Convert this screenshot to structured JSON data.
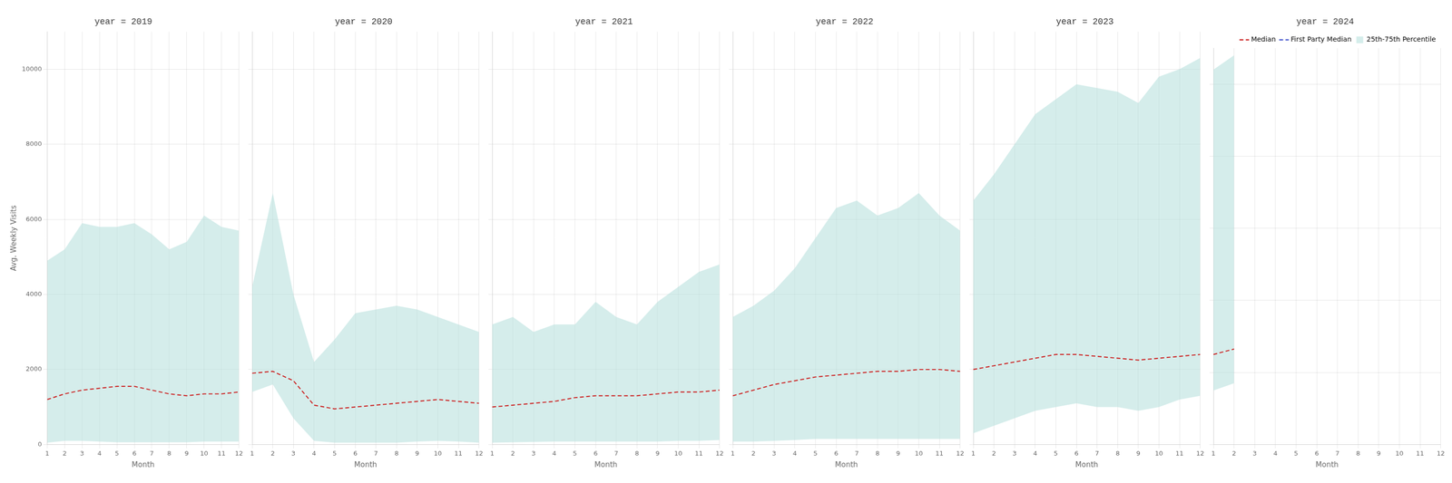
{
  "chart_data": [
    {
      "type": "line",
      "title": "year = 2019",
      "xlabel": "Month",
      "ylabel": "Avg. Weekly Visits",
      "x": [
        1,
        2,
        3,
        4,
        5,
        6,
        7,
        8,
        9,
        10,
        11,
        12
      ],
      "series": [
        {
          "name": "25th-75th Percentile",
          "type": "band",
          "color": "#b2dfdb",
          "lower": [
            50,
            100,
            100,
            80,
            60,
            60,
            60,
            60,
            60,
            80,
            80,
            80
          ],
          "upper": [
            4900,
            5200,
            5900,
            5800,
            5800,
            5900,
            5600,
            5200,
            5400,
            6100,
            5800,
            5700
          ]
        },
        {
          "name": "Median",
          "color": "#cc2222",
          "line_style": "dashed",
          "values": [
            1200,
            1350,
            1450,
            1500,
            1550,
            1550,
            1450,
            1350,
            1300,
            1350,
            1350,
            1400
          ]
        }
      ],
      "xlim": [
        1,
        12
      ],
      "xticks": [
        1,
        2,
        3,
        4,
        5,
        6,
        7,
        8,
        9,
        10,
        11,
        12
      ],
      "ylim": [
        0,
        11000
      ],
      "yticks": [
        0,
        2000,
        4000,
        6000,
        8000,
        10000
      ],
      "grid": true
    },
    {
      "type": "line",
      "title": "year = 2020",
      "xlabel": "Month",
      "x": [
        1,
        2,
        3,
        4,
        5,
        6,
        7,
        8,
        9,
        10,
        11,
        12
      ],
      "series": [
        {
          "name": "25th-75th Percentile",
          "type": "band",
          "color": "#b2dfdb",
          "lower": [
            1400,
            1600,
            700,
            100,
            50,
            50,
            50,
            50,
            80,
            100,
            80,
            50
          ],
          "upper": [
            4200,
            6700,
            4000,
            2200,
            2800,
            3500,
            3600,
            3700,
            3600,
            3400,
            3200,
            3000
          ]
        },
        {
          "name": "Median",
          "color": "#cc2222",
          "line_style": "dashed",
          "values": [
            1900,
            1950,
            1700,
            1050,
            950,
            1000,
            1050,
            1100,
            1150,
            1200,
            1150,
            1100
          ]
        }
      ],
      "xlim": [
        1,
        12
      ],
      "xticks": [
        1,
        2,
        3,
        4,
        5,
        6,
        7,
        8,
        9,
        10,
        11,
        12
      ],
      "ylim": [
        0,
        11000
      ],
      "yticks": [
        0,
        2000,
        4000,
        6000,
        8000,
        10000
      ],
      "grid": true,
      "tick_labels": "x"
    },
    {
      "type": "line",
      "title": "year = 2021",
      "xlabel": "Month",
      "x": [
        1,
        2,
        3,
        4,
        5,
        6,
        7,
        8,
        9,
        10,
        11,
        12
      ],
      "series": [
        {
          "name": "25th-75th Percentile",
          "type": "band",
          "color": "#b2dfdb",
          "lower": [
            50,
            60,
            70,
            80,
            80,
            80,
            80,
            80,
            80,
            100,
            100,
            120
          ],
          "upper": [
            3200,
            3400,
            3000,
            3200,
            3200,
            3800,
            3400,
            3200,
            3800,
            4200,
            4600,
            4800
          ]
        },
        {
          "name": "Median",
          "color": "#cc2222",
          "line_style": "dashed",
          "values": [
            1000,
            1050,
            1100,
            1150,
            1250,
            1300,
            1300,
            1300,
            1350,
            1400,
            1400,
            1450
          ]
        }
      ],
      "xlim": [
        1,
        12
      ],
      "xticks": [
        1,
        2,
        3,
        4,
        5,
        6,
        7,
        8,
        9,
        10,
        11,
        12
      ],
      "ylim": [
        0,
        11000
      ],
      "yticks": [
        0,
        2000,
        4000,
        6000,
        8000,
        10000
      ],
      "grid": true,
      "tick_labels": "x"
    },
    {
      "type": "line",
      "title": "year = 2022",
      "xlabel": "Month",
      "x": [
        1,
        2,
        3,
        4,
        5,
        6,
        7,
        8,
        9,
        10,
        11,
        12
      ],
      "series": [
        {
          "name": "25th-75th Percentile",
          "type": "band",
          "color": "#b2dfdb",
          "lower": [
            80,
            80,
            100,
            120,
            150,
            150,
            150,
            150,
            150,
            150,
            150,
            150
          ],
          "upper": [
            3400,
            3700,
            4100,
            4700,
            5500,
            6300,
            6500,
            6100,
            6300,
            6700,
            6100,
            5700
          ]
        },
        {
          "name": "Median",
          "color": "#cc2222",
          "line_style": "dashed",
          "values": [
            1300,
            1450,
            1600,
            1700,
            1800,
            1850,
            1900,
            1950,
            1950,
            2000,
            2000,
            1950
          ]
        }
      ],
      "xlim": [
        1,
        12
      ],
      "xticks": [
        1,
        2,
        3,
        4,
        5,
        6,
        7,
        8,
        9,
        10,
        11,
        12
      ],
      "ylim": [
        0,
        11000
      ],
      "yticks": [
        0,
        2000,
        4000,
        6000,
        8000,
        10000
      ],
      "grid": true,
      "tick_labels": "x"
    },
    {
      "type": "line",
      "title": "year = 2023",
      "xlabel": "Month",
      "x": [
        1,
        2,
        3,
        4,
        5,
        6,
        7,
        8,
        9,
        10,
        11,
        12
      ],
      "series": [
        {
          "name": "25th-75th Percentile",
          "type": "band",
          "color": "#b2dfdb",
          "lower": [
            300,
            500,
            700,
            900,
            1000,
            1100,
            1000,
            1000,
            900,
            1000,
            1200,
            1300
          ],
          "upper": [
            6500,
            7200,
            8000,
            8800,
            9200,
            9600,
            9500,
            9400,
            9100,
            9800,
            10000,
            10300
          ]
        },
        {
          "name": "Median",
          "color": "#cc2222",
          "line_style": "dashed",
          "values": [
            2000,
            2100,
            2200,
            2300,
            2400,
            2400,
            2350,
            2300,
            2250,
            2300,
            2350,
            2400
          ]
        }
      ],
      "xlim": [
        1,
        12
      ],
      "xticks": [
        1,
        2,
        3,
        4,
        5,
        6,
        7,
        8,
        9,
        10,
        11,
        12
      ],
      "ylim": [
        0,
        11000
      ],
      "yticks": [
        0,
        2000,
        4000,
        6000,
        8000,
        10000
      ],
      "grid": true,
      "tick_labels": "x"
    },
    {
      "type": "line",
      "title": "year = 2024",
      "xlabel": "Month",
      "x": [
        1,
        2
      ],
      "series": [
        {
          "name": "Median",
          "color": "#cc2222",
          "line_style": "dashed",
          "values": [
            2500,
            2650
          ]
        },
        {
          "name": "First Party Median",
          "color": "#4455cc",
          "line_style": "dashed",
          "values": [
            null,
            null
          ]
        },
        {
          "name": "25th-75th Percentile",
          "type": "band",
          "color": "#b2dfdb",
          "lower": [
            1500,
            1700
          ],
          "upper": [
            10400,
            10800
          ]
        }
      ],
      "xlim": [
        1,
        12
      ],
      "xticks": [
        1,
        2,
        3,
        4,
        5,
        6,
        7,
        8,
        9,
        10,
        11,
        12
      ],
      "ylim": [
        0,
        11000
      ],
      "yticks": [
        0,
        2000,
        4000,
        6000,
        8000,
        10000
      ],
      "grid": true,
      "tick_labels": "x",
      "legend": "upper right"
    }
  ]
}
